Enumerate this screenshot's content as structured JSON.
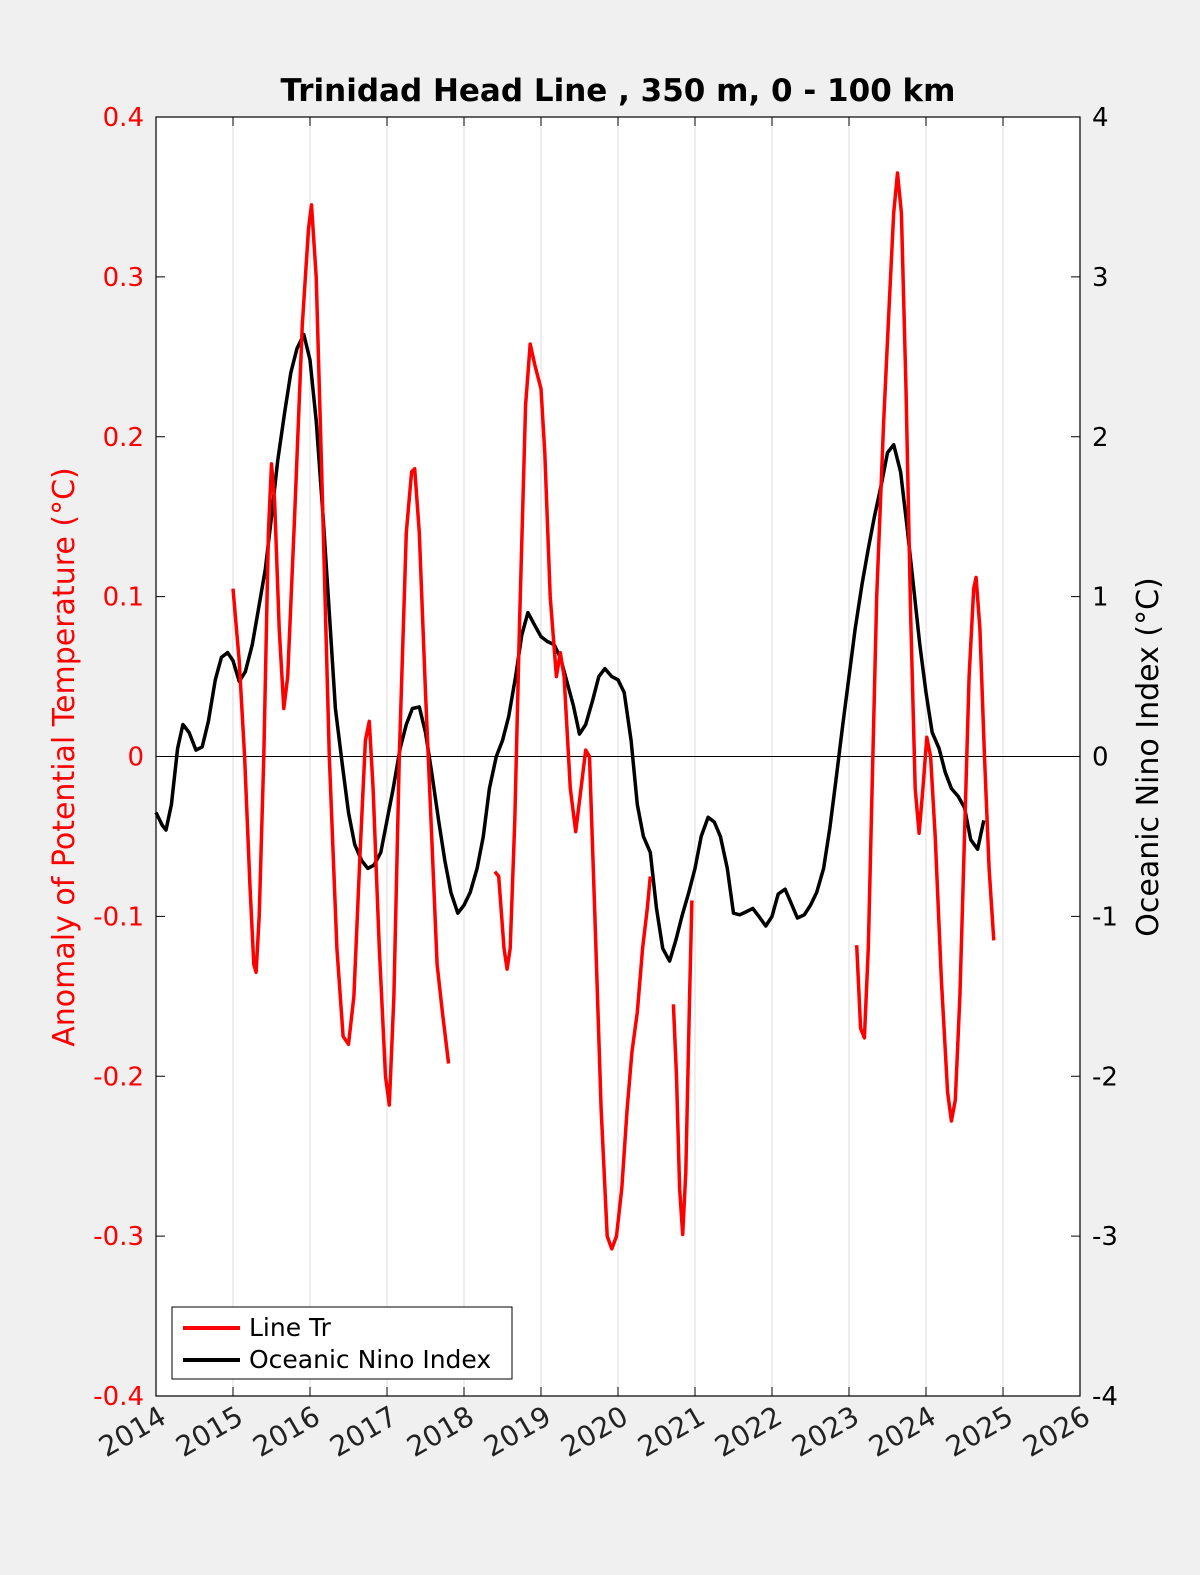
{
  "chart_data": {
    "type": "line",
    "title": "Trinidad Head Line , 350 m, 0 - 100 km",
    "ylabel_left": "Anomaly of Potential Temperature (°C)",
    "ylabel_right": "Oceanic Nino Index (°C)",
    "xlabel": "",
    "xlim": [
      2014,
      2026
    ],
    "ylim_left": [
      -0.4,
      0.4
    ],
    "ylim_right": [
      -4,
      4
    ],
    "x_ticks": [
      "2014",
      "2015",
      "2016",
      "2017",
      "2018",
      "2019",
      "2020",
      "2021",
      "2022",
      "2023",
      "2024",
      "2025",
      "2026"
    ],
    "y_ticks_left": [
      "0.4",
      "0.3",
      "0.2",
      "0.1",
      "0",
      "-0.1",
      "-0.2",
      "-0.3",
      "-0.4"
    ],
    "y_ticks_right": [
      "4",
      "3",
      "2",
      "1",
      "0",
      "-1",
      "-2",
      "-3",
      "-4"
    ],
    "grid": "vertical",
    "legend_position": "bottom-left",
    "colors": {
      "line_tr": "#ff0000",
      "oni": "#000000",
      "left_axis": "#ff0000",
      "right_axis": "#000000"
    },
    "series": [
      {
        "name": "Line Tr",
        "axis": "left",
        "segments": [
          [
            [
              2015.0,
              0.105
            ],
            [
              2015.08,
              0.06
            ],
            [
              2015.15,
              0.0
            ],
            [
              2015.22,
              -0.08
            ],
            [
              2015.27,
              -0.13
            ],
            [
              2015.3,
              -0.135
            ],
            [
              2015.34,
              -0.1
            ],
            [
              2015.4,
              0.0
            ],
            [
              2015.46,
              0.14
            ],
            [
              2015.5,
              0.183
            ],
            [
              2015.54,
              0.16
            ],
            [
              2015.6,
              0.08
            ],
            [
              2015.66,
              0.03
            ],
            [
              2015.71,
              0.05
            ],
            [
              2015.8,
              0.15
            ],
            [
              2015.9,
              0.27
            ],
            [
              2015.98,
              0.33
            ],
            [
              2016.02,
              0.345
            ],
            [
              2016.08,
              0.3
            ],
            [
              2016.15,
              0.18
            ],
            [
              2016.25,
              0.0
            ],
            [
              2016.35,
              -0.12
            ],
            [
              2016.43,
              -0.175
            ],
            [
              2016.5,
              -0.18
            ],
            [
              2016.57,
              -0.15
            ],
            [
              2016.65,
              -0.06
            ],
            [
              2016.72,
              0.01
            ],
            [
              2016.77,
              0.022
            ],
            [
              2016.82,
              -0.02
            ],
            [
              2016.9,
              -0.12
            ],
            [
              2016.98,
              -0.2
            ],
            [
              2017.03,
              -0.218
            ],
            [
              2017.09,
              -0.15
            ],
            [
              2017.16,
              0.0
            ],
            [
              2017.25,
              0.14
            ],
            [
              2017.32,
              0.178
            ],
            [
              2017.36,
              0.18
            ],
            [
              2017.42,
              0.14
            ],
            [
              2017.5,
              0.04
            ],
            [
              2017.58,
              -0.05
            ],
            [
              2017.65,
              -0.13
            ],
            [
              2017.72,
              -0.16
            ],
            [
              2017.8,
              -0.192
            ]
          ],
          [
            [
              2018.4,
              -0.072
            ],
            [
              2018.45,
              -0.075
            ],
            [
              2018.52,
              -0.12
            ],
            [
              2018.56,
              -0.133
            ],
            [
              2018.6,
              -0.12
            ],
            [
              2018.66,
              -0.04
            ],
            [
              2018.72,
              0.08
            ],
            [
              2018.8,
              0.22
            ],
            [
              2018.86,
              0.258
            ],
            [
              2018.92,
              0.245
            ],
            [
              2019.0,
              0.23
            ],
            [
              2019.05,
              0.19
            ],
            [
              2019.12,
              0.1
            ],
            [
              2019.2,
              0.05
            ],
            [
              2019.25,
              0.065
            ],
            [
              2019.3,
              0.05
            ],
            [
              2019.38,
              -0.02
            ],
            [
              2019.45,
              -0.047
            ],
            [
              2019.52,
              -0.02
            ],
            [
              2019.58,
              0.004
            ],
            [
              2019.63,
              0.0
            ],
            [
              2019.7,
              -0.1
            ],
            [
              2019.78,
              -0.22
            ],
            [
              2019.86,
              -0.3
            ],
            [
              2019.92,
              -0.308
            ],
            [
              2019.98,
              -0.3
            ],
            [
              2020.05,
              -0.27
            ],
            [
              2020.12,
              -0.22
            ],
            [
              2020.18,
              -0.185
            ],
            [
              2020.25,
              -0.16
            ],
            [
              2020.32,
              -0.12
            ],
            [
              2020.38,
              -0.095
            ],
            [
              2020.42,
              -0.075
            ]
          ],
          [
            [
              2020.72,
              -0.155
            ],
            [
              2020.76,
              -0.2
            ],
            [
              2020.8,
              -0.27
            ],
            [
              2020.84,
              -0.299
            ],
            [
              2020.88,
              -0.26
            ],
            [
              2020.93,
              -0.15
            ],
            [
              2020.96,
              -0.09
            ]
          ],
          [
            [
              2023.1,
              -0.118
            ],
            [
              2023.15,
              -0.17
            ],
            [
              2023.2,
              -0.176
            ],
            [
              2023.25,
              -0.12
            ],
            [
              2023.3,
              -0.02
            ],
            [
              2023.36,
              0.1
            ],
            [
              2023.45,
              0.21
            ],
            [
              2023.52,
              0.28
            ],
            [
              2023.58,
              0.34
            ],
            [
              2023.63,
              0.365
            ],
            [
              2023.68,
              0.34
            ],
            [
              2023.74,
              0.23
            ],
            [
              2023.8,
              0.09
            ],
            [
              2023.86,
              -0.02
            ],
            [
              2023.91,
              -0.048
            ],
            [
              2023.96,
              -0.02
            ],
            [
              2024.01,
              0.012
            ],
            [
              2024.06,
              0.0
            ],
            [
              2024.12,
              -0.05
            ],
            [
              2024.2,
              -0.14
            ],
            [
              2024.28,
              -0.21
            ],
            [
              2024.33,
              -0.228
            ],
            [
              2024.38,
              -0.215
            ],
            [
              2024.44,
              -0.15
            ],
            [
              2024.5,
              -0.05
            ],
            [
              2024.56,
              0.05
            ],
            [
              2024.62,
              0.105
            ],
            [
              2024.65,
              0.112
            ],
            [
              2024.7,
              0.08
            ],
            [
              2024.76,
              0.0
            ],
            [
              2024.82,
              -0.07
            ],
            [
              2024.88,
              -0.115
            ]
          ]
        ]
      },
      {
        "name": "Oceanic Nino Index",
        "axis": "right",
        "points": [
          [
            2014.0,
            -0.35
          ],
          [
            2014.08,
            -0.43
          ],
          [
            2014.13,
            -0.46
          ],
          [
            2014.2,
            -0.3
          ],
          [
            2014.28,
            0.05
          ],
          [
            2014.35,
            0.2
          ],
          [
            2014.43,
            0.15
          ],
          [
            2014.52,
            0.04
          ],
          [
            2014.6,
            0.06
          ],
          [
            2014.68,
            0.22
          ],
          [
            2014.77,
            0.48
          ],
          [
            2014.85,
            0.62
          ],
          [
            2014.93,
            0.65
          ],
          [
            2015.0,
            0.6
          ],
          [
            2015.08,
            0.47
          ],
          [
            2015.16,
            0.53
          ],
          [
            2015.25,
            0.7
          ],
          [
            2015.33,
            0.92
          ],
          [
            2015.42,
            1.17
          ],
          [
            2015.5,
            1.5
          ],
          [
            2015.58,
            1.85
          ],
          [
            2015.67,
            2.15
          ],
          [
            2015.75,
            2.4
          ],
          [
            2015.83,
            2.55
          ],
          [
            2015.92,
            2.64
          ],
          [
            2016.0,
            2.48
          ],
          [
            2016.08,
            2.1
          ],
          [
            2016.17,
            1.5
          ],
          [
            2016.25,
            0.9
          ],
          [
            2016.33,
            0.3
          ],
          [
            2016.42,
            -0.05
          ],
          [
            2016.5,
            -0.35
          ],
          [
            2016.58,
            -0.55
          ],
          [
            2016.67,
            -0.65
          ],
          [
            2016.75,
            -0.7
          ],
          [
            2016.83,
            -0.68
          ],
          [
            2016.92,
            -0.6
          ],
          [
            2017.0,
            -0.4
          ],
          [
            2017.08,
            -0.2
          ],
          [
            2017.17,
            0.05
          ],
          [
            2017.25,
            0.2
          ],
          [
            2017.33,
            0.3
          ],
          [
            2017.42,
            0.31
          ],
          [
            2017.5,
            0.15
          ],
          [
            2017.58,
            -0.1
          ],
          [
            2017.67,
            -0.4
          ],
          [
            2017.75,
            -0.65
          ],
          [
            2017.83,
            -0.85
          ],
          [
            2017.92,
            -0.98
          ],
          [
            2018.0,
            -0.93
          ],
          [
            2018.08,
            -0.85
          ],
          [
            2018.17,
            -0.7
          ],
          [
            2018.25,
            -0.5
          ],
          [
            2018.33,
            -0.2
          ],
          [
            2018.42,
            0.0
          ],
          [
            2018.5,
            0.1
          ],
          [
            2018.58,
            0.25
          ],
          [
            2018.67,
            0.5
          ],
          [
            2018.75,
            0.76
          ],
          [
            2018.83,
            0.9
          ],
          [
            2018.92,
            0.82
          ],
          [
            2019.0,
            0.75
          ],
          [
            2019.08,
            0.72
          ],
          [
            2019.17,
            0.7
          ],
          [
            2019.25,
            0.62
          ],
          [
            2019.33,
            0.48
          ],
          [
            2019.42,
            0.32
          ],
          [
            2019.5,
            0.14
          ],
          [
            2019.58,
            0.2
          ],
          [
            2019.67,
            0.35
          ],
          [
            2019.75,
            0.5
          ],
          [
            2019.83,
            0.55
          ],
          [
            2019.92,
            0.5
          ],
          [
            2020.0,
            0.48
          ],
          [
            2020.08,
            0.4
          ],
          [
            2020.17,
            0.1
          ],
          [
            2020.25,
            -0.3
          ],
          [
            2020.33,
            -0.5
          ],
          [
            2020.42,
            -0.6
          ],
          [
            2020.5,
            -0.95
          ],
          [
            2020.58,
            -1.2
          ],
          [
            2020.67,
            -1.28
          ],
          [
            2020.75,
            -1.15
          ],
          [
            2020.83,
            -1.0
          ],
          [
            2020.92,
            -0.85
          ],
          [
            2021.0,
            -0.7
          ],
          [
            2021.08,
            -0.5
          ],
          [
            2021.17,
            -0.38
          ],
          [
            2021.25,
            -0.41
          ],
          [
            2021.33,
            -0.5
          ],
          [
            2021.42,
            -0.7
          ],
          [
            2021.5,
            -0.98
          ],
          [
            2021.58,
            -0.99
          ],
          [
            2021.67,
            -0.97
          ],
          [
            2021.75,
            -0.95
          ],
          [
            2021.83,
            -1.0
          ],
          [
            2021.92,
            -1.06
          ],
          [
            2022.0,
            -1.0
          ],
          [
            2022.08,
            -0.86
          ],
          [
            2022.17,
            -0.83
          ],
          [
            2022.25,
            -0.92
          ],
          [
            2022.33,
            -1.01
          ],
          [
            2022.42,
            -0.99
          ],
          [
            2022.5,
            -0.93
          ],
          [
            2022.58,
            -0.85
          ],
          [
            2022.67,
            -0.7
          ],
          [
            2022.75,
            -0.45
          ],
          [
            2022.83,
            -0.15
          ],
          [
            2022.92,
            0.2
          ],
          [
            2023.0,
            0.5
          ],
          [
            2023.08,
            0.8
          ],
          [
            2023.17,
            1.08
          ],
          [
            2023.25,
            1.3
          ],
          [
            2023.33,
            1.5
          ],
          [
            2023.42,
            1.7
          ],
          [
            2023.5,
            1.9
          ],
          [
            2023.58,
            1.95
          ],
          [
            2023.67,
            1.78
          ],
          [
            2023.75,
            1.45
          ],
          [
            2023.83,
            1.1
          ],
          [
            2023.92,
            0.7
          ],
          [
            2024.0,
            0.4
          ],
          [
            2024.08,
            0.15
          ],
          [
            2024.17,
            0.05
          ],
          [
            2024.25,
            -0.1
          ],
          [
            2024.33,
            -0.2
          ],
          [
            2024.42,
            -0.25
          ],
          [
            2024.5,
            -0.32
          ],
          [
            2024.58,
            -0.52
          ],
          [
            2024.67,
            -0.58
          ],
          [
            2024.75,
            -0.4
          ]
        ]
      }
    ],
    "legend": [
      "Line Tr",
      "Oceanic Nino Index"
    ]
  }
}
